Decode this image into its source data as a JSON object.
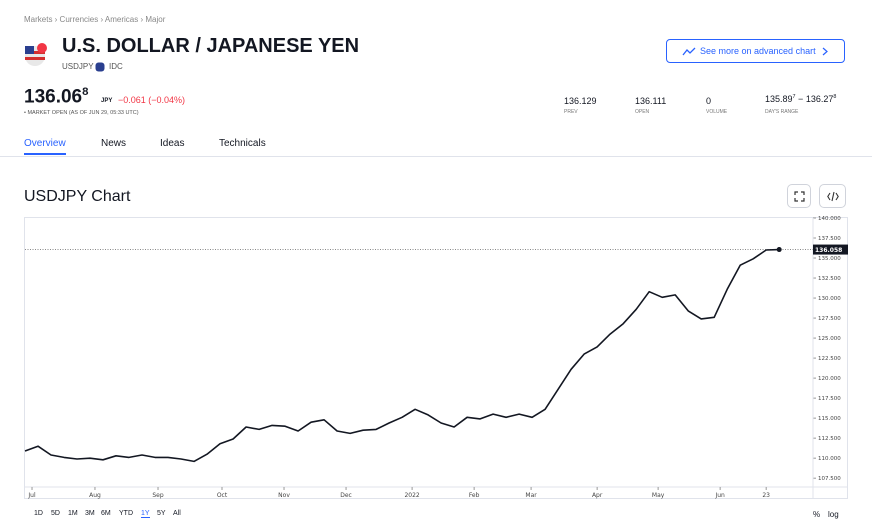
{
  "header": {
    "breadcrumb": "Markets › Currencies › Americas › Major",
    "title": "U.S. DOLLAR / JAPANESE YEN",
    "symbol": "USDJPY",
    "source": "IDC",
    "button": "See more on advanced chart"
  },
  "quote": {
    "price": "136.06",
    "price_sup": "8",
    "currency": "JPY",
    "change": "−0.061 (−0.04%)",
    "status": "• MARKET OPEN (AS OF JUN 29, 05:33 UTC)",
    "stats": [
      {
        "value": "136.129",
        "label": "PREV"
      },
      {
        "value": "136.111",
        "label": "OPEN"
      },
      {
        "value": "0",
        "label": "VOLUME"
      }
    ],
    "day_range": {
      "low": "135.89",
      "low_sup": "7",
      "sep": "−",
      "high": "136.27",
      "high_sup": "8",
      "label": "DAY'S RANGE"
    }
  },
  "tabs": [
    "Overview",
    "News",
    "Ideas",
    "Technicals"
  ],
  "chart_heading": "USDJPY Chart",
  "ranges": [
    "1D",
    "5D",
    "1M",
    "3M",
    "6M",
    "YTD",
    "1Y",
    "5Y",
    "All"
  ],
  "active_range": 6,
  "scale_options": [
    "%",
    "log"
  ],
  "chart_data": {
    "type": "line",
    "color": "#131722",
    "values": [
      110.9,
      111.5,
      110.4,
      110.1,
      109.9,
      110.0,
      109.8,
      110.3,
      110.1,
      110.4,
      110.1,
      110.1,
      109.9,
      109.6,
      110.5,
      111.8,
      112.4,
      113.9,
      113.6,
      114.1,
      114.0,
      113.4,
      114.5,
      114.8,
      113.4,
      113.1,
      113.5,
      113.6,
      114.4,
      115.1,
      116.1,
      115.4,
      114.4,
      113.9,
      115.1,
      114.9,
      115.5,
      115.1,
      115.5,
      115.1,
      116.1,
      118.6,
      121.1,
      123.0,
      123.9,
      125.5,
      126.8,
      128.6,
      130.8,
      130.1,
      130.4,
      128.4,
      127.4,
      127.6,
      131.1,
      134.1,
      134.9,
      136.0,
      136.058
    ],
    "last_price": {
      "value": 136.058,
      "label": "136.058"
    },
    "xlim": [
      0,
      60.6
    ],
    "xticks": [
      {
        "value": 0.54,
        "label": "Jul"
      },
      {
        "value": 5.38,
        "label": "Aug"
      },
      {
        "value": 10.23,
        "label": "Sep"
      },
      {
        "value": 15.15,
        "label": "Oct"
      },
      {
        "value": 19.92,
        "label": "Nov"
      },
      {
        "value": 24.69,
        "label": "Dec"
      },
      {
        "value": 29.77,
        "label": "2022"
      },
      {
        "value": 34.54,
        "label": "Feb"
      },
      {
        "value": 38.92,
        "label": "Mar"
      },
      {
        "value": 44.0,
        "label": "Apr"
      },
      {
        "value": 48.69,
        "label": "May"
      },
      {
        "value": 53.46,
        "label": "Jun"
      },
      {
        "value": 57.0,
        "label": "23"
      }
    ],
    "ylim": [
      106.4,
      140.0
    ],
    "yticks": [
      {
        "value": 107.5,
        "label": "107.500"
      },
      {
        "value": 110,
        "label": "110.000"
      },
      {
        "value": 112.5,
        "label": "112.500"
      },
      {
        "value": 115,
        "label": "115.000"
      },
      {
        "value": 117.5,
        "label": "117.500"
      },
      {
        "value": 120,
        "label": "120.000"
      },
      {
        "value": 122.5,
        "label": "122.500"
      },
      {
        "value": 125,
        "label": "125.000"
      },
      {
        "value": 127.5,
        "label": "127.500"
      },
      {
        "value": 130,
        "label": "130.000"
      },
      {
        "value": 132.5,
        "label": "132.500"
      },
      {
        "value": 135,
        "label": "135.000"
      },
      {
        "value": 137.5,
        "label": "137.500"
      },
      {
        "value": 140,
        "label": "140.000"
      }
    ],
    "grid": false
  }
}
